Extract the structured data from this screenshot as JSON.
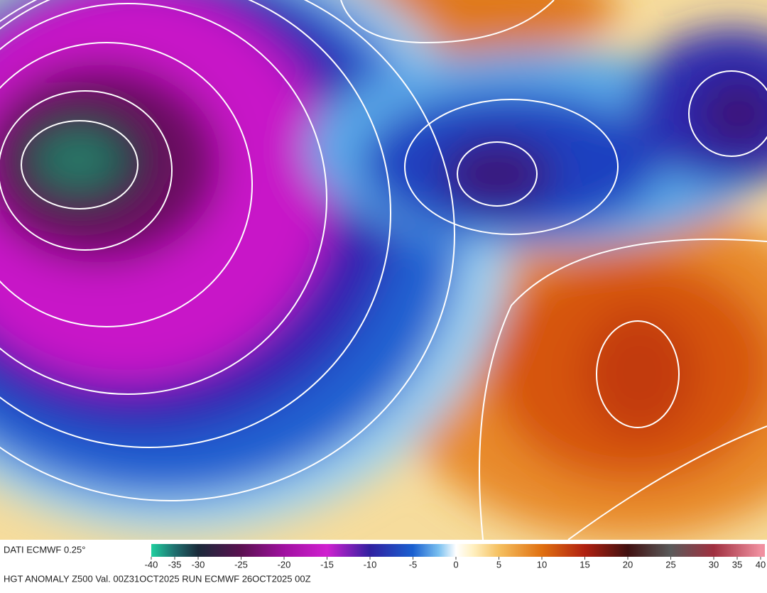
{
  "footer": {
    "source": "DATI ECMWF 0.25°",
    "caption": "HGT ANOMALY Z500 Val. 00Z31OCT2025 RUN ECMWF 26OCT2025 00Z"
  },
  "colorbar": {
    "ticks": [
      -40,
      -35,
      -30,
      -25,
      -20,
      -15,
      -10,
      -5,
      0,
      5,
      10,
      15,
      20,
      25,
      30,
      35,
      40
    ],
    "stops": [
      {
        "value": -40,
        "color": "#1fcf9f"
      },
      {
        "value": -35,
        "color": "#1f6f6f"
      },
      {
        "value": -30,
        "color": "#1a2a3a"
      },
      {
        "value": -25,
        "color": "#5a1050"
      },
      {
        "value": -20,
        "color": "#a010a0"
      },
      {
        "value": -15,
        "color": "#d020d0"
      },
      {
        "value": -10,
        "color": "#3020a0"
      },
      {
        "value": -5,
        "color": "#1a60d0"
      },
      {
        "value": -2,
        "color": "#7ac0f0"
      },
      {
        "value": 0,
        "color": "#ffffff"
      },
      {
        "value": 2,
        "color": "#fff0c0"
      },
      {
        "value": 5,
        "color": "#f5c060"
      },
      {
        "value": 10,
        "color": "#e07010"
      },
      {
        "value": 15,
        "color": "#b02010"
      },
      {
        "value": 20,
        "color": "#401010"
      },
      {
        "value": 25,
        "color": "#5a5a5a"
      },
      {
        "value": 30,
        "color": "#a03040"
      },
      {
        "value": 40,
        "color": "#f090a0"
      }
    ]
  }
}
